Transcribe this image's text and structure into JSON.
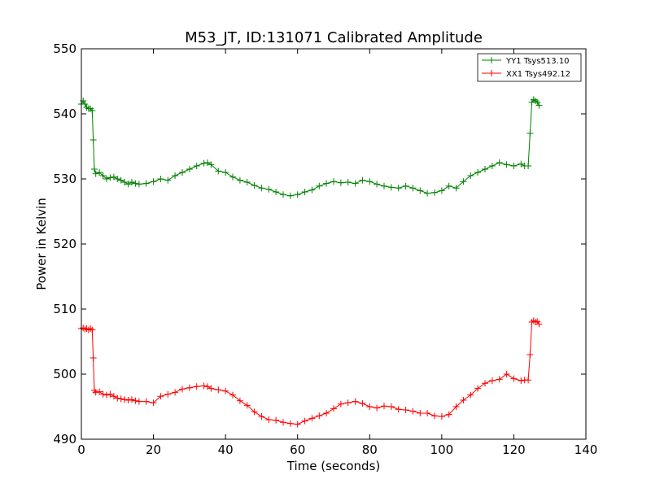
{
  "chart_data": {
    "type": "line",
    "title": "M53_JT, ID:131071 Calibrated Amplitude",
    "xlabel": "Time (seconds)",
    "ylabel": "Power in Kelvin",
    "xlim": [
      0,
      140
    ],
    "ylim": [
      490,
      550
    ],
    "xticks": [
      "0",
      "20",
      "40",
      "60",
      "80",
      "100",
      "120",
      "140"
    ],
    "yticks": [
      "490",
      "500",
      "510",
      "520",
      "530",
      "540",
      "550"
    ],
    "legend_position": "top-right",
    "grid": false,
    "series": [
      {
        "name": "YY1 Tsys513.10",
        "color": "#008000",
        "marker": "+",
        "x": [
          0,
          0.5,
          1,
          1.5,
          2,
          2.5,
          3,
          3.3,
          3.6,
          4,
          5,
          6,
          7,
          8,
          9,
          10,
          11,
          12,
          13,
          14,
          15,
          16,
          18,
          20,
          22,
          24,
          26,
          28,
          30,
          32,
          34,
          35,
          36,
          38,
          40,
          42,
          44,
          46,
          48,
          50,
          52,
          54,
          56,
          58,
          60,
          62,
          64,
          66,
          68,
          70,
          72,
          74,
          76,
          78,
          80,
          82,
          84,
          86,
          88,
          90,
          92,
          94,
          96,
          98,
          100,
          102,
          104,
          106,
          108,
          110,
          112,
          114,
          116,
          118,
          120,
          122,
          123,
          124,
          124.5,
          125,
          125.5,
          126,
          126.5,
          127
        ],
        "y": [
          541.5,
          542,
          541.5,
          541,
          540.8,
          540.8,
          540.5,
          536,
          531.5,
          530.8,
          531,
          530.5,
          530,
          530.2,
          530.3,
          530,
          529.8,
          529.5,
          529.2,
          529.5,
          529.3,
          529.2,
          529.3,
          529.6,
          530,
          529.8,
          530.5,
          531,
          531.5,
          532,
          532.4,
          532.5,
          532.2,
          531.2,
          531,
          530.3,
          529.8,
          529.5,
          529,
          528.6,
          528.4,
          528,
          527.6,
          527.4,
          527.6,
          528,
          528.3,
          528.9,
          529.3,
          529.6,
          529.4,
          529.5,
          529.3,
          529.8,
          529.6,
          529.2,
          528.9,
          528.7,
          528.6,
          528.9,
          528.6,
          528.2,
          527.8,
          527.9,
          528.2,
          528.9,
          528.6,
          529.6,
          530.5,
          531,
          531.5,
          532,
          532.5,
          532.2,
          532,
          532.3,
          532,
          532,
          537,
          541.8,
          542.2,
          542,
          541.8,
          541.3
        ]
      },
      {
        "name": "XX1 Tsys492.12",
        "color": "#ff0000",
        "marker": "+",
        "x": [
          0,
          0.5,
          1,
          1.5,
          2,
          2.5,
          3,
          3.3,
          3.6,
          4,
          5,
          6,
          7,
          8,
          9,
          10,
          11,
          12,
          13,
          14,
          15,
          16,
          18,
          20,
          22,
          24,
          26,
          28,
          30,
          32,
          34,
          35,
          36,
          38,
          40,
          42,
          44,
          46,
          48,
          50,
          52,
          54,
          56,
          58,
          60,
          62,
          64,
          66,
          68,
          70,
          72,
          74,
          76,
          78,
          80,
          82,
          84,
          86,
          88,
          90,
          92,
          94,
          96,
          98,
          100,
          102,
          104,
          106,
          108,
          110,
          112,
          114,
          116,
          118,
          120,
          122,
          123,
          124,
          124.5,
          125,
          125.5,
          126,
          126.5,
          127
        ],
        "y": [
          507,
          507.1,
          506.9,
          507,
          506.8,
          507,
          506.8,
          502.5,
          497.5,
          497.2,
          497.3,
          496.9,
          496.8,
          496.9,
          496.6,
          496.3,
          496.2,
          496.1,
          496,
          496.1,
          495.9,
          495.8,
          495.8,
          495.6,
          496.6,
          496.9,
          497.2,
          497.7,
          497.9,
          498.1,
          498.2,
          498.1,
          497.8,
          497.6,
          497.4,
          496.8,
          495.9,
          495.2,
          494.2,
          493.5,
          493,
          492.9,
          492.6,
          492.4,
          492.3,
          492.8,
          493.2,
          493.6,
          494,
          494.7,
          495.4,
          495.6,
          495.8,
          495.5,
          495,
          494.8,
          495.1,
          495,
          494.6,
          494.5,
          494.3,
          494,
          494,
          493.6,
          493.5,
          493.8,
          495,
          496,
          496.8,
          497.8,
          498.6,
          499,
          499.2,
          500,
          499.3,
          499,
          499.1,
          499.1,
          503,
          508,
          508.2,
          508,
          508.1,
          507.7
        ]
      }
    ]
  }
}
